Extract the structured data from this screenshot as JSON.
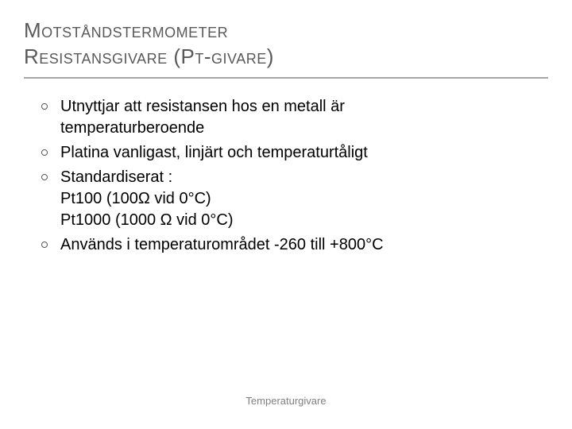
{
  "colors": {
    "title_color": "#595959",
    "rule_color": "#a6a6a6",
    "body_color": "#000000",
    "bullet_border": "#555555",
    "footer_color": "#808080",
    "background": "#ffffff"
  },
  "typography": {
    "title_fontsize": 26,
    "body_fontsize": 20,
    "footer_fontsize": 13,
    "font_family": "Verdana"
  },
  "title": {
    "line1": "Motståndstermometer",
    "line2": "Resistansgivare (Pt-givare)"
  },
  "bullets": [
    {
      "lines": [
        "Utnyttjar att resistansen hos en metall är",
        "temperaturberoende"
      ]
    },
    {
      "lines": [
        "Platina vanligast, linjärt och temperaturtåligt"
      ]
    },
    {
      "lines": [
        "Standardiserat :",
        "Pt100 (100Ω vid 0°C)",
        "Pt1000 (1000 Ω vid 0°C)"
      ]
    },
    {
      "lines": [
        "Används i temperaturområdet  -260 till +800°C"
      ]
    }
  ],
  "footer": "Temperaturgivare"
}
